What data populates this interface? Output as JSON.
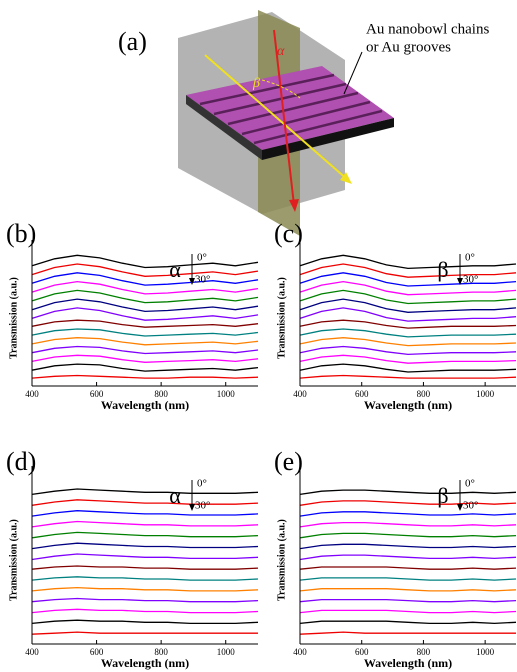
{
  "diagram": {
    "label": "(a)",
    "annotation": [
      "Au nanobowl chains",
      "or Au grooves"
    ],
    "angles": [
      "α",
      "β"
    ]
  },
  "chart_data": [
    {
      "type": "line",
      "label": "(b)",
      "xlabel": "Wavelength (nm)",
      "ylabel": "Transmission (a.u.)",
      "angle": {
        "symbol": "α",
        "start": "0°",
        "end": "30°"
      },
      "x": [
        400,
        470,
        540,
        610,
        680,
        750,
        820,
        890,
        960,
        1030,
        1100
      ],
      "xlim": [
        400,
        1100
      ],
      "xticks": [
        400,
        600,
        800,
        1000
      ],
      "ylim": [
        0,
        15.5
      ],
      "series": [
        {
          "color": "#000000",
          "values": [
            13.7,
            14.5,
            14.9,
            14.6,
            14,
            13.5,
            13.6,
            13.8,
            14,
            13.7,
            14.1
          ]
        },
        {
          "color": "#ee0000",
          "values": [
            12.7,
            13.5,
            13.9,
            13.6,
            13,
            12.5,
            12.6,
            12.8,
            13,
            12.7,
            13.1
          ]
        },
        {
          "color": "#0000ff",
          "values": [
            11.7,
            12.5,
            12.9,
            12.6,
            12,
            11.5,
            11.6,
            11.8,
            12,
            11.7,
            12.1
          ]
        },
        {
          "color": "#ff00ff",
          "values": [
            10.7,
            11.5,
            11.9,
            11.6,
            11,
            10.5,
            10.6,
            10.8,
            11,
            10.7,
            11.1
          ]
        },
        {
          "color": "#008000",
          "values": [
            9.7,
            10.5,
            10.9,
            10.6,
            10,
            9.5,
            9.6,
            9.8,
            10,
            9.7,
            10.1
          ]
        },
        {
          "color": "#000080",
          "values": [
            8.7,
            9.5,
            9.9,
            9.6,
            9,
            8.5,
            8.6,
            8.8,
            9,
            8.7,
            9.1
          ]
        },
        {
          "color": "#8000ff",
          "values": [
            7.7,
            8.5,
            8.9,
            8.6,
            8,
            7.5,
            7.6,
            7.8,
            8,
            7.7,
            8.1
          ]
        },
        {
          "color": "#800000",
          "values": [
            6.8,
            7.3,
            7.5,
            7.4,
            7,
            6.7,
            6.8,
            6.9,
            7,
            6.8,
            7.1
          ]
        },
        {
          "color": "#008080",
          "values": [
            5.8,
            6.3,
            6.5,
            6.4,
            6,
            5.7,
            5.8,
            5.9,
            6,
            5.8,
            6.1
          ]
        },
        {
          "color": "#ff8000",
          "values": [
            4.8,
            5.3,
            5.5,
            5.4,
            5,
            4.7,
            4.8,
            4.9,
            5,
            4.8,
            5.1
          ]
        },
        {
          "color": "#8000ff",
          "values": [
            3.8,
            4.3,
            4.5,
            4.4,
            4,
            3.7,
            3.8,
            3.9,
            4,
            3.8,
            4.1
          ]
        },
        {
          "color": "#ff00ff",
          "values": [
            2.8,
            3.3,
            3.5,
            3.4,
            3,
            2.7,
            2.8,
            2.9,
            3,
            2.8,
            3.1
          ]
        },
        {
          "color": "#000000",
          "values": [
            1.8,
            2.3,
            2.5,
            2.4,
            2,
            1.7,
            1.8,
            1.9,
            2,
            1.8,
            2.1
          ]
        },
        {
          "color": "#ee0000",
          "values": [
            0.9,
            1.1,
            1.2,
            1.1,
            1,
            0.9,
            0.9,
            1,
            1,
            0.9,
            1
          ]
        }
      ]
    },
    {
      "type": "line",
      "label": "(c)",
      "xlabel": "Wavelength (nm)",
      "ylabel": "Transmission (a.u.)",
      "angle": {
        "symbol": "β",
        "start": "0°",
        "end": "30°"
      },
      "x": [
        400,
        470,
        540,
        610,
        680,
        750,
        820,
        890,
        960,
        1030,
        1100
      ],
      "xlim": [
        400,
        1100
      ],
      "xticks": [
        400,
        600,
        800,
        1000
      ],
      "ylim": [
        0,
        15.5
      ],
      "series": [
        {
          "color": "#000000",
          "values": [
            13.7,
            14.5,
            14.9,
            14.5,
            13.8,
            13.4,
            13.5,
            13.6,
            13.7,
            13.7,
            13.9
          ]
        },
        {
          "color": "#ee0000",
          "values": [
            12.7,
            13.5,
            13.9,
            13.5,
            12.8,
            12.4,
            12.5,
            12.6,
            12.7,
            12.7,
            12.9
          ]
        },
        {
          "color": "#0000ff",
          "values": [
            11.7,
            12.5,
            12.9,
            12.5,
            11.8,
            11.4,
            11.5,
            11.6,
            11.7,
            11.7,
            11.9
          ]
        },
        {
          "color": "#ff00ff",
          "values": [
            10.7,
            11.5,
            11.9,
            11.5,
            10.8,
            10.4,
            10.5,
            10.6,
            10.7,
            10.7,
            10.9
          ]
        },
        {
          "color": "#008000",
          "values": [
            9.7,
            10.5,
            10.9,
            10.5,
            9.8,
            9.4,
            9.5,
            9.6,
            9.7,
            9.7,
            9.9
          ]
        },
        {
          "color": "#000080",
          "values": [
            8.7,
            9.5,
            9.9,
            9.5,
            8.8,
            8.4,
            8.5,
            8.6,
            8.7,
            8.7,
            8.9
          ]
        },
        {
          "color": "#8000ff",
          "values": [
            7.7,
            8.5,
            8.9,
            8.5,
            7.8,
            7.4,
            7.5,
            7.6,
            7.7,
            7.7,
            7.9
          ]
        },
        {
          "color": "#800000",
          "values": [
            6.8,
            7.3,
            7.5,
            7.3,
            6.9,
            6.6,
            6.7,
            6.8,
            6.8,
            6.8,
            6.9
          ]
        },
        {
          "color": "#008080",
          "values": [
            5.8,
            6.3,
            6.5,
            6.3,
            5.9,
            5.6,
            5.7,
            5.8,
            5.8,
            5.8,
            5.9
          ]
        },
        {
          "color": "#ff8000",
          "values": [
            4.8,
            5.3,
            5.5,
            5.3,
            4.9,
            4.6,
            4.7,
            4.8,
            4.8,
            4.8,
            4.9
          ]
        },
        {
          "color": "#8000ff",
          "values": [
            3.8,
            4.3,
            4.5,
            4.3,
            3.9,
            3.6,
            3.7,
            3.8,
            3.8,
            3.8,
            3.9
          ]
        },
        {
          "color": "#ff00ff",
          "values": [
            2.8,
            3.3,
            3.5,
            3.3,
            2.9,
            2.6,
            2.7,
            2.8,
            2.8,
            2.8,
            2.9
          ]
        },
        {
          "color": "#000000",
          "values": [
            1.8,
            2.3,
            2.5,
            2.3,
            1.9,
            1.6,
            1.7,
            1.8,
            1.8,
            1.8,
            1.9
          ]
        },
        {
          "color": "#ee0000",
          "values": [
            0.9,
            1.1,
            1.2,
            1.1,
            1,
            0.9,
            0.9,
            0.9,
            0.9,
            0.9,
            1
          ]
        }
      ]
    },
    {
      "type": "line",
      "label": "(d)",
      "xlabel": "Wavelength (nm)",
      "ylabel": "Transmission (a.u.)",
      "angle": {
        "symbol": "α",
        "start": "0°",
        "end": "30°"
      },
      "x": [
        400,
        470,
        540,
        610,
        680,
        750,
        820,
        890,
        960,
        1030,
        1100
      ],
      "xlim": [
        400,
        1100
      ],
      "xticks": [
        400,
        600,
        800,
        1000
      ],
      "ylim": [
        0,
        15.5
      ],
      "series": [
        {
          "color": "#000000",
          "values": [
            13.8,
            14.1,
            14.3,
            14.2,
            14.1,
            14,
            14,
            13.9,
            13.9,
            13.9,
            14
          ]
        },
        {
          "color": "#ee0000",
          "values": [
            12.8,
            13.1,
            13.3,
            13.2,
            13.1,
            13,
            13,
            12.9,
            12.9,
            12.9,
            13
          ]
        },
        {
          "color": "#0000ff",
          "values": [
            11.8,
            12.1,
            12.3,
            12.2,
            12.1,
            12,
            12,
            11.9,
            11.9,
            11.9,
            12
          ]
        },
        {
          "color": "#ff00ff",
          "values": [
            10.8,
            11.1,
            11.3,
            11.2,
            11.1,
            11,
            11,
            10.9,
            10.9,
            10.9,
            11
          ]
        },
        {
          "color": "#008000",
          "values": [
            9.8,
            10.1,
            10.3,
            10.2,
            10.1,
            10,
            10,
            9.9,
            9.9,
            9.9,
            10
          ]
        },
        {
          "color": "#000080",
          "values": [
            8.8,
            9.1,
            9.3,
            9.2,
            9.1,
            9,
            9,
            8.9,
            8.9,
            8.9,
            9
          ]
        },
        {
          "color": "#8000ff",
          "values": [
            7.8,
            8.1,
            8.3,
            8.2,
            8.1,
            8,
            8,
            7.9,
            7.9,
            7.9,
            8
          ]
        },
        {
          "color": "#800000",
          "values": [
            6.9,
            7.1,
            7.2,
            7.1,
            7.1,
            7,
            7,
            6.9,
            6.9,
            6.9,
            7
          ]
        },
        {
          "color": "#008080",
          "values": [
            5.9,
            6.1,
            6.2,
            6.1,
            6.1,
            6,
            6,
            5.9,
            5.9,
            5.9,
            6
          ]
        },
        {
          "color": "#ff8000",
          "values": [
            4.9,
            5.1,
            5.2,
            5.1,
            5.1,
            5,
            5,
            4.9,
            4.9,
            4.9,
            5
          ]
        },
        {
          "color": "#8000ff",
          "values": [
            3.9,
            4.1,
            4.2,
            4.1,
            4.1,
            4,
            4,
            3.9,
            3.9,
            3.9,
            4
          ]
        },
        {
          "color": "#ff00ff",
          "values": [
            2.9,
            3.1,
            3.2,
            3.1,
            3.1,
            3,
            3,
            2.9,
            2.9,
            2.9,
            3
          ]
        },
        {
          "color": "#000000",
          "values": [
            1.9,
            2.1,
            2.2,
            2.1,
            2.1,
            2,
            2,
            1.9,
            1.9,
            1.9,
            2
          ]
        },
        {
          "color": "#ee0000",
          "values": [
            0.9,
            1,
            1.1,
            1,
            1,
            1,
            1,
            1,
            1,
            1,
            1
          ]
        }
      ]
    },
    {
      "type": "line",
      "label": "(e)",
      "xlabel": "Wavelength (nm)",
      "ylabel": "Transmission (a.u.)",
      "angle": {
        "symbol": "β",
        "start": "0°",
        "end": "30°"
      },
      "x": [
        400,
        470,
        540,
        610,
        680,
        750,
        820,
        890,
        960,
        1030,
        1100
      ],
      "xlim": [
        400,
        1100
      ],
      "xticks": [
        400,
        600,
        800,
        1000
      ],
      "ylim": [
        0,
        15.5
      ],
      "series": [
        {
          "color": "#000000",
          "values": [
            13.8,
            14.1,
            14.2,
            14.2,
            14.1,
            14,
            13.9,
            13.9,
            14,
            13.9,
            14
          ]
        },
        {
          "color": "#ee0000",
          "values": [
            12.8,
            13.1,
            13.2,
            13.2,
            13.1,
            13,
            12.9,
            12.9,
            13,
            12.9,
            13
          ]
        },
        {
          "color": "#0000ff",
          "values": [
            11.8,
            12.1,
            12.2,
            12.2,
            12.1,
            12,
            11.9,
            11.9,
            12,
            11.9,
            12
          ]
        },
        {
          "color": "#ff00ff",
          "values": [
            10.8,
            11.1,
            11.2,
            11.2,
            11.1,
            11,
            10.9,
            10.9,
            11,
            10.9,
            11
          ]
        },
        {
          "color": "#008000",
          "values": [
            9.8,
            10.1,
            10.2,
            10.2,
            10.1,
            10,
            9.9,
            9.9,
            10,
            9.9,
            10
          ]
        },
        {
          "color": "#000080",
          "values": [
            8.8,
            9.1,
            9.2,
            9.2,
            9.1,
            9,
            8.9,
            8.9,
            9,
            8.9,
            9
          ]
        },
        {
          "color": "#8000ff",
          "values": [
            7.8,
            8.1,
            8.2,
            8.2,
            8.1,
            8,
            7.9,
            7.9,
            8,
            7.9,
            8
          ]
        },
        {
          "color": "#800000",
          "values": [
            6.9,
            7.1,
            7.1,
            7.1,
            7.1,
            7,
            6.9,
            6.9,
            7,
            6.9,
            7
          ]
        },
        {
          "color": "#008080",
          "values": [
            5.9,
            6.1,
            6.1,
            6.1,
            6.1,
            6,
            5.9,
            5.9,
            6,
            5.9,
            6
          ]
        },
        {
          "color": "#ff8000",
          "values": [
            4.9,
            5.1,
            5.1,
            5.1,
            5.1,
            5,
            4.9,
            4.9,
            5,
            4.9,
            5
          ]
        },
        {
          "color": "#8000ff",
          "values": [
            3.9,
            4.1,
            4.1,
            4.1,
            4.1,
            4,
            3.9,
            3.9,
            4,
            3.9,
            4
          ]
        },
        {
          "color": "#ff00ff",
          "values": [
            2.9,
            3.1,
            3.1,
            3.1,
            3.1,
            3,
            2.9,
            2.9,
            3,
            2.9,
            3
          ]
        },
        {
          "color": "#000000",
          "values": [
            1.9,
            2.1,
            2.1,
            2.1,
            2.1,
            2,
            1.9,
            1.9,
            2,
            1.9,
            2
          ]
        },
        {
          "color": "#ee0000",
          "values": [
            0.9,
            1,
            1.1,
            1,
            1,
            1,
            1,
            1,
            1,
            1,
            1
          ]
        }
      ]
    }
  ]
}
